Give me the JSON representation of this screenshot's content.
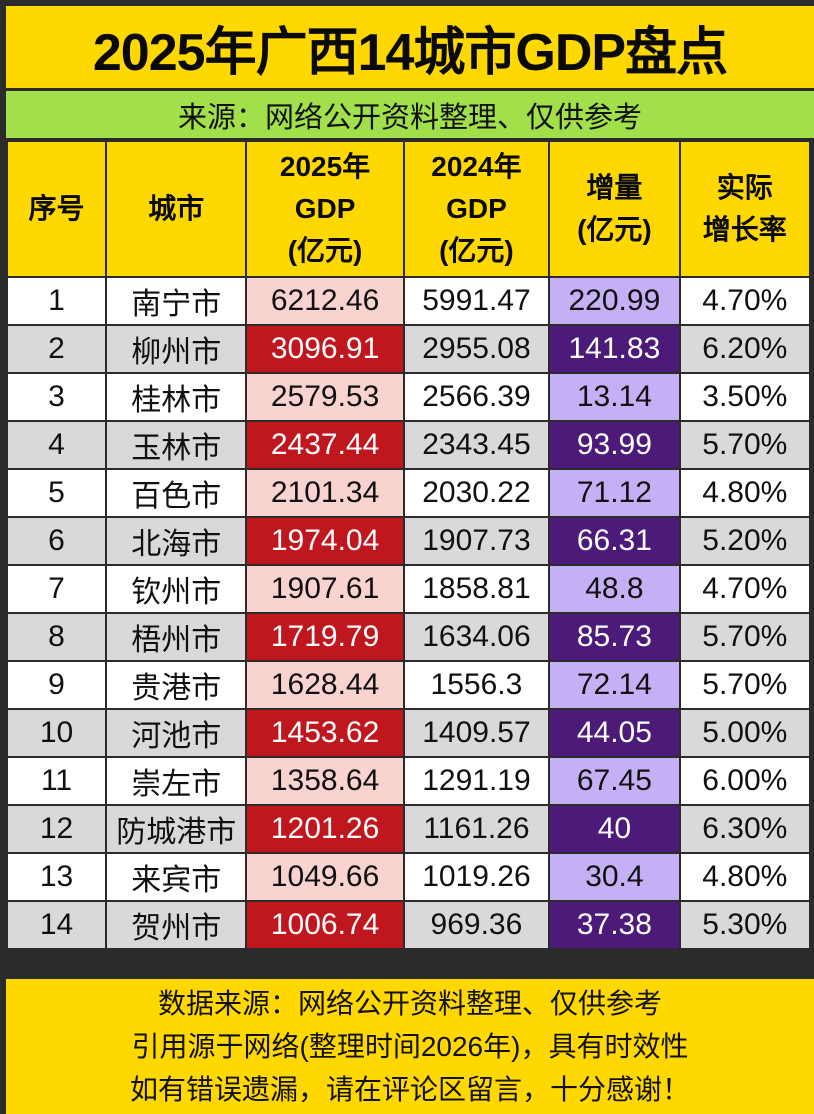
{
  "title": "2025年广西14城市GDP盘点",
  "subtitle": "来源：网络公开资料整理、仅供参考",
  "colors": {
    "title_bg": "#ffd800",
    "subtitle_bg": "#a1e04a",
    "highlight_red": "#c0161e",
    "light_red": "#f8d3d0",
    "highlight_purple": "#4c1a78",
    "light_purple": "#c5b0f5",
    "row_gray": "#d9d9d9"
  },
  "table": {
    "headers": {
      "index": "序号",
      "city": "城市",
      "gdp2025": [
        "2025年",
        "GDP",
        "(亿元)"
      ],
      "gdp2024": [
        "2024年",
        "GDP",
        "(亿元)"
      ],
      "increase": [
        "增量",
        "(亿元)"
      ],
      "growth": [
        "实际",
        "增长率"
      ]
    },
    "rows": [
      {
        "index": "1",
        "city": "南宁市",
        "gdp2025": "6212.46",
        "gdp2024": "5991.47",
        "increase": "220.99",
        "growth": "4.70%"
      },
      {
        "index": "2",
        "city": "柳州市",
        "gdp2025": "3096.91",
        "gdp2024": "2955.08",
        "increase": "141.83",
        "growth": "6.20%"
      },
      {
        "index": "3",
        "city": "桂林市",
        "gdp2025": "2579.53",
        "gdp2024": "2566.39",
        "increase": "13.14",
        "growth": "3.50%"
      },
      {
        "index": "4",
        "city": "玉林市",
        "gdp2025": "2437.44",
        "gdp2024": "2343.45",
        "increase": "93.99",
        "growth": "5.70%"
      },
      {
        "index": "5",
        "city": "百色市",
        "gdp2025": "2101.34",
        "gdp2024": "2030.22",
        "increase": "71.12",
        "growth": "4.80%"
      },
      {
        "index": "6",
        "city": "北海市",
        "gdp2025": "1974.04",
        "gdp2024": "1907.73",
        "increase": "66.31",
        "growth": "5.20%"
      },
      {
        "index": "7",
        "city": "钦州市",
        "gdp2025": "1907.61",
        "gdp2024": "1858.81",
        "increase": "48.8",
        "growth": "4.70%"
      },
      {
        "index": "8",
        "city": "梧州市",
        "gdp2025": "1719.79",
        "gdp2024": "1634.06",
        "increase": "85.73",
        "growth": "5.70%"
      },
      {
        "index": "9",
        "city": "贵港市",
        "gdp2025": "1628.44",
        "gdp2024": "1556.3",
        "increase": "72.14",
        "growth": "5.70%"
      },
      {
        "index": "10",
        "city": "河池市",
        "gdp2025": "1453.62",
        "gdp2024": "1409.57",
        "increase": "44.05",
        "growth": "5.00%"
      },
      {
        "index": "11",
        "city": "崇左市",
        "gdp2025": "1358.64",
        "gdp2024": "1291.19",
        "increase": "67.45",
        "growth": "6.00%"
      },
      {
        "index": "12",
        "city": "防城港市",
        "gdp2025": "1201.26",
        "gdp2024": "1161.26",
        "increase": "40",
        "growth": "6.30%"
      },
      {
        "index": "13",
        "city": "来宾市",
        "gdp2025": "1049.66",
        "gdp2024": "1019.26",
        "increase": "30.4",
        "growth": "4.80%"
      },
      {
        "index": "14",
        "city": "贺州市",
        "gdp2025": "1006.74",
        "gdp2024": "969.36",
        "increase": "37.38",
        "growth": "5.30%"
      }
    ]
  },
  "footer": {
    "lines": [
      "数据来源：网络公开资料整理、仅供参考",
      "引用源于网络(整理时间2026年)，具有时效性",
      "如有错误遗漏，请在评论区留言，十分感谢！"
    ]
  }
}
